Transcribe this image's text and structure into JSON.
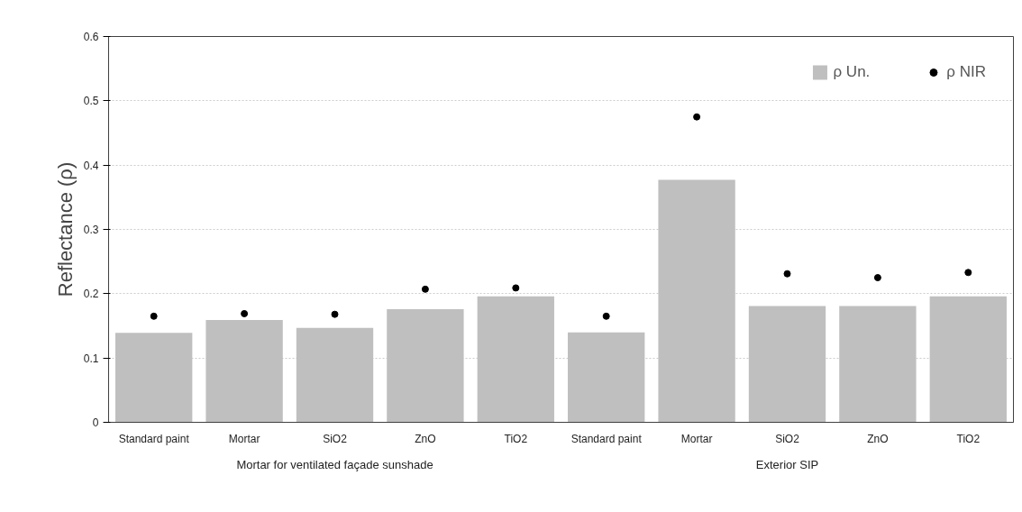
{
  "chart_data": {
    "type": "bar",
    "ylabel": "Reflectance (ρ)",
    "categories": [
      "Standard paint",
      "Mortar",
      "SiO2",
      "ZnO",
      "TiO2",
      "Standard paint",
      "Mortar",
      "SiO2",
      "ZnO",
      "TiO2"
    ],
    "series": [
      {
        "name": "ρ Un.",
        "color": "#bfbfbf",
        "values": [
          0.139,
          0.159,
          0.147,
          0.176,
          0.196,
          0.14,
          0.377,
          0.181,
          0.181,
          0.196
        ]
      },
      {
        "name": "ρ NIR",
        "type": "scatter",
        "color": "#000000",
        "marker": "circle",
        "values": [
          0.165,
          0.169,
          0.168,
          0.207,
          0.209,
          0.165,
          0.475,
          0.231,
          0.225,
          0.233
        ]
      }
    ],
    "annotations": [
      "Mortar for ventilated façade sunshade",
      "Exterior SIP"
    ],
    "ylim": [
      0,
      0.6
    ],
    "yticks": [
      0,
      0.1,
      0.2,
      0.3,
      0.4,
      0.5,
      0.6
    ],
    "grid": "y",
    "legend": "top right"
  }
}
